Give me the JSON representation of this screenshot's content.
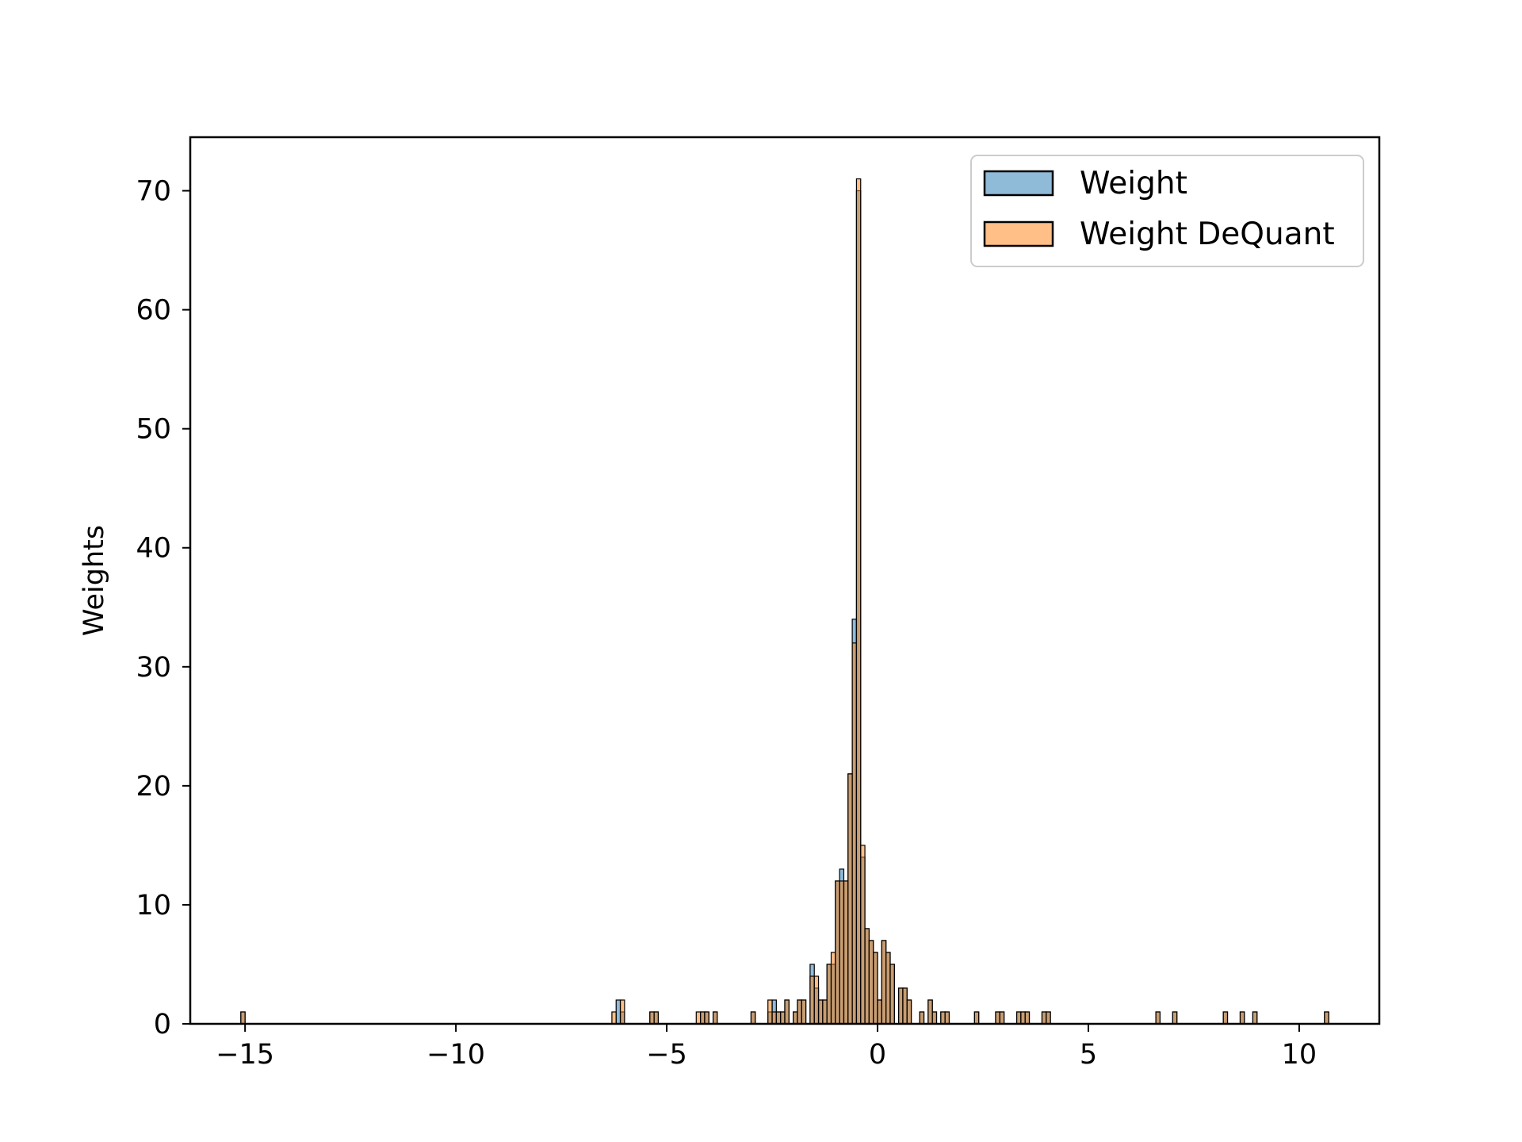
{
  "chart_data": {
    "type": "histogram",
    "xlabel": "",
    "ylabel": "Weights",
    "xlim": [
      -16.3,
      11.9
    ],
    "ylim": [
      0,
      74.5
    ],
    "bin_width": 0.1,
    "xticks": [
      -15,
      -10,
      -5,
      0,
      5,
      10
    ],
    "xtick_labels": [
      "−15",
      "−10",
      "−5",
      "0",
      "5",
      "10"
    ],
    "yticks": [
      0,
      10,
      20,
      30,
      40,
      50,
      60,
      70
    ],
    "ytick_labels": [
      "0",
      "10",
      "20",
      "30",
      "40",
      "50",
      "60",
      "70"
    ],
    "grid": false,
    "legend_position": "top-right",
    "series": [
      {
        "name": "Weight",
        "color": "#1f77b4",
        "bins": [
          [
            -15.1,
            1
          ],
          [
            -6.2,
            2
          ],
          [
            -6.1,
            1
          ],
          [
            -5.4,
            1
          ],
          [
            -5.3,
            1
          ],
          [
            -4.2,
            1
          ],
          [
            -4.1,
            1
          ],
          [
            -3.9,
            1
          ],
          [
            -3.0,
            1
          ],
          [
            -2.6,
            1
          ],
          [
            -2.5,
            2
          ],
          [
            -2.4,
            1
          ],
          [
            -2.3,
            1
          ],
          [
            -2.2,
            2
          ],
          [
            -2.0,
            1
          ],
          [
            -1.9,
            2
          ],
          [
            -1.8,
            2
          ],
          [
            -1.6,
            5
          ],
          [
            -1.5,
            3
          ],
          [
            -1.4,
            2
          ],
          [
            -1.3,
            2
          ],
          [
            -1.2,
            5
          ],
          [
            -1.1,
            5
          ],
          [
            -1.0,
            12
          ],
          [
            -0.9,
            13
          ],
          [
            -0.8,
            12
          ],
          [
            -0.7,
            21
          ],
          [
            -0.6,
            34
          ],
          [
            -0.5,
            70
          ],
          [
            -0.4,
            14
          ],
          [
            -0.3,
            8
          ],
          [
            -0.2,
            7
          ],
          [
            -0.1,
            6
          ],
          [
            0.0,
            2
          ],
          [
            0.1,
            7
          ],
          [
            0.2,
            6
          ],
          [
            0.3,
            5
          ],
          [
            0.5,
            3
          ],
          [
            0.6,
            3
          ],
          [
            0.7,
            2
          ],
          [
            1.0,
            1
          ],
          [
            1.2,
            2
          ],
          [
            1.3,
            1
          ],
          [
            1.5,
            1
          ],
          [
            1.6,
            1
          ],
          [
            2.3,
            1
          ],
          [
            2.8,
            1
          ],
          [
            2.9,
            1
          ],
          [
            3.3,
            1
          ],
          [
            3.4,
            1
          ],
          [
            3.5,
            1
          ],
          [
            3.9,
            1
          ],
          [
            4.0,
            1
          ],
          [
            6.6,
            1
          ],
          [
            7.0,
            1
          ],
          [
            8.2,
            1
          ],
          [
            8.6,
            1
          ],
          [
            8.9,
            1
          ],
          [
            10.6,
            1
          ]
        ]
      },
      {
        "name": "Weight DeQuant",
        "color": "#ff7f0e",
        "bins": [
          [
            -15.1,
            1
          ],
          [
            -6.3,
            1
          ],
          [
            -6.1,
            2
          ],
          [
            -5.4,
            1
          ],
          [
            -5.3,
            1
          ],
          [
            -4.3,
            1
          ],
          [
            -4.2,
            1
          ],
          [
            -4.1,
            1
          ],
          [
            -3.9,
            1
          ],
          [
            -3.0,
            1
          ],
          [
            -2.6,
            2
          ],
          [
            -2.5,
            1
          ],
          [
            -2.4,
            1
          ],
          [
            -2.3,
            1
          ],
          [
            -2.2,
            2
          ],
          [
            -2.0,
            1
          ],
          [
            -1.9,
            2
          ],
          [
            -1.8,
            2
          ],
          [
            -1.6,
            4
          ],
          [
            -1.5,
            4
          ],
          [
            -1.4,
            2
          ],
          [
            -1.3,
            2
          ],
          [
            -1.2,
            5
          ],
          [
            -1.1,
            6
          ],
          [
            -1.0,
            12
          ],
          [
            -0.9,
            12
          ],
          [
            -0.8,
            12
          ],
          [
            -0.7,
            21
          ],
          [
            -0.6,
            32
          ],
          [
            -0.5,
            71
          ],
          [
            -0.4,
            15
          ],
          [
            -0.3,
            8
          ],
          [
            -0.2,
            7
          ],
          [
            -0.1,
            6
          ],
          [
            0.0,
            2
          ],
          [
            0.1,
            7
          ],
          [
            0.2,
            6
          ],
          [
            0.3,
            5
          ],
          [
            0.5,
            3
          ],
          [
            0.6,
            3
          ],
          [
            0.7,
            2
          ],
          [
            1.0,
            1
          ],
          [
            1.2,
            2
          ],
          [
            1.3,
            1
          ],
          [
            1.5,
            1
          ],
          [
            1.6,
            1
          ],
          [
            2.3,
            1
          ],
          [
            2.8,
            1
          ],
          [
            2.9,
            1
          ],
          [
            3.3,
            1
          ],
          [
            3.4,
            1
          ],
          [
            3.5,
            1
          ],
          [
            3.9,
            1
          ],
          [
            4.0,
            1
          ],
          [
            6.6,
            1
          ],
          [
            7.0,
            1
          ],
          [
            8.2,
            1
          ],
          [
            8.6,
            1
          ],
          [
            8.9,
            1
          ],
          [
            10.6,
            1
          ]
        ]
      }
    ]
  }
}
